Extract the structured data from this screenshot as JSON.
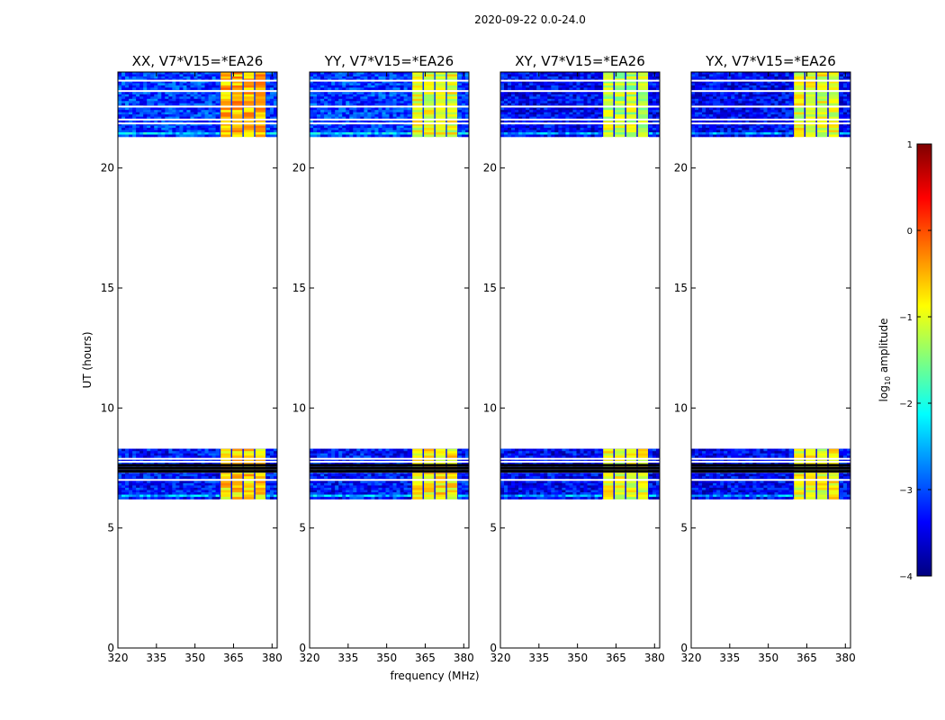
{
  "figure": {
    "suptitle": "2020-09-22 0.0-24.0",
    "shared_xlabel": "frequency (MHz)",
    "shared_ylabel": "UT (hours)"
  },
  "colorbar": {
    "label": "log$_{10}$ amplitude",
    "label_base": "log",
    "label_sub": "10",
    "label_rest": " amplitude",
    "range": [
      -4,
      1
    ],
    "ticks": [
      1,
      0,
      -1,
      -2,
      -3,
      -4
    ],
    "tick_labels": [
      "1",
      "0",
      "−1",
      "−2",
      "−3",
      "−4"
    ],
    "colormap": "jet",
    "colors": [
      "#00007f",
      "#0000ff",
      "#007fff",
      "#00ffff",
      "#7fff7f",
      "#ffff00",
      "#ff7f00",
      "#ff0000",
      "#7f0000"
    ]
  },
  "chart_data": [
    {
      "type": "heatmap",
      "title": "XX, V7*V15=*EA26",
      "xlabel": "",
      "ylabel": "UT (hours)",
      "xlim": [
        320,
        382
      ],
      "ylim": [
        0,
        24
      ],
      "xticks": [
        320,
        335,
        350,
        365,
        380
      ],
      "xtick_labels": [
        "320",
        "335",
        "350",
        "365",
        "380"
      ],
      "yticks": [
        0,
        5,
        10,
        15,
        20
      ],
      "ytick_labels": [
        "0",
        "5",
        "10",
        "15",
        "20"
      ],
      "data_blocks": [
        {
          "t_start": 21.3,
          "t_end": 24.0,
          "f_start": 320,
          "f_end": 382,
          "log_amp_background": -3.1,
          "log_amp_band": -0.5,
          "band_f_start": 360,
          "band_f_end": 378
        },
        {
          "t_start": 6.2,
          "t_end": 8.3,
          "f_start": 320,
          "f_end": 382,
          "log_amp_background": -3.3,
          "log_amp_band": -0.7,
          "band_f_start": 360,
          "band_f_end": 378
        }
      ]
    },
    {
      "type": "heatmap",
      "title": "YY, V7*V15=*EA26",
      "xlabel": "frequency (MHz)",
      "ylabel": "",
      "xlim": [
        320,
        382
      ],
      "ylim": [
        0,
        24
      ],
      "xticks": [
        320,
        335,
        350,
        365,
        380
      ],
      "xtick_labels": [
        "320",
        "335",
        "350",
        "365",
        "380"
      ],
      "yticks": [
        0,
        5,
        10,
        15,
        20
      ],
      "ytick_labels": [
        "0",
        "5",
        "10",
        "15",
        "20"
      ],
      "data_blocks": [
        {
          "t_start": 21.3,
          "t_end": 24.0,
          "f_start": 320,
          "f_end": 382,
          "log_amp_background": -3.1,
          "log_amp_band": -1.0,
          "band_f_start": 360,
          "band_f_end": 378
        },
        {
          "t_start": 6.2,
          "t_end": 8.3,
          "f_start": 320,
          "f_end": 382,
          "log_amp_background": -3.3,
          "log_amp_band": -0.8,
          "band_f_start": 360,
          "band_f_end": 378
        }
      ]
    },
    {
      "type": "heatmap",
      "title": "XY, V7*V15=*EA26",
      "xlabel": "",
      "ylabel": "",
      "xlim": [
        320,
        382
      ],
      "ylim": [
        0,
        24
      ],
      "xticks": [
        320,
        335,
        350,
        365,
        380
      ],
      "xtick_labels": [
        "320",
        "335",
        "350",
        "365",
        "380"
      ],
      "yticks": [
        0,
        5,
        10,
        15,
        20
      ],
      "ytick_labels": [
        "0",
        "5",
        "10",
        "15",
        "20"
      ],
      "data_blocks": [
        {
          "t_start": 21.3,
          "t_end": 24.0,
          "f_start": 320,
          "f_end": 382,
          "log_amp_background": -3.4,
          "log_amp_band": -1.2,
          "band_f_start": 360,
          "band_f_end": 378
        },
        {
          "t_start": 6.2,
          "t_end": 8.3,
          "f_start": 320,
          "f_end": 382,
          "log_amp_background": -3.4,
          "log_amp_band": -1.0,
          "band_f_start": 360,
          "band_f_end": 378
        }
      ]
    },
    {
      "type": "heatmap",
      "title": "YX, V7*V15=*EA26",
      "xlabel": "",
      "ylabel": "",
      "xlim": [
        320,
        382
      ],
      "ylim": [
        0,
        24
      ],
      "xticks": [
        320,
        335,
        350,
        365,
        380
      ],
      "xtick_labels": [
        "320",
        "335",
        "350",
        "365",
        "380"
      ],
      "yticks": [
        0,
        5,
        10,
        15,
        20
      ],
      "ytick_labels": [
        "0",
        "5",
        "10",
        "15",
        "20"
      ],
      "data_blocks": [
        {
          "t_start": 21.3,
          "t_end": 24.0,
          "f_start": 320,
          "f_end": 382,
          "log_amp_background": -3.4,
          "log_amp_band": -1.0,
          "band_f_start": 360,
          "band_f_end": 378
        },
        {
          "t_start": 6.2,
          "t_end": 8.3,
          "f_start": 320,
          "f_end": 382,
          "log_amp_background": -3.4,
          "log_amp_band": -0.9,
          "band_f_start": 360,
          "band_f_end": 378
        }
      ]
    }
  ]
}
